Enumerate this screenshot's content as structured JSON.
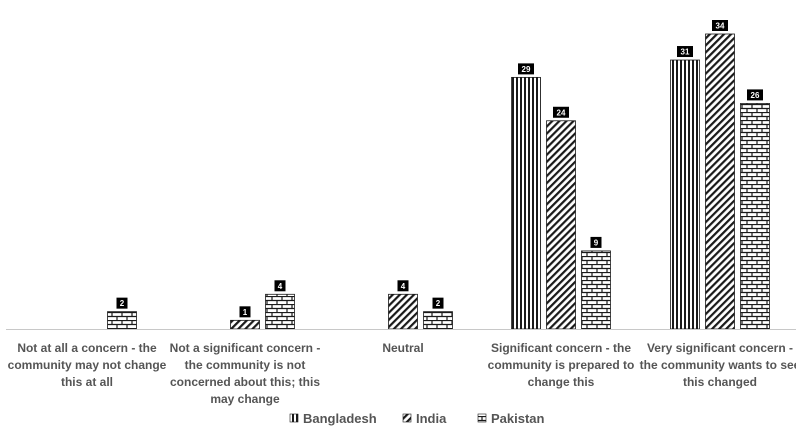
{
  "chart_data": {
    "type": "bar",
    "categories": [
      [
        "Not at all a concern - the",
        "community may not change",
        "this at all"
      ],
      [
        "Not a significant concern -",
        "the community is not",
        "concerned about this; this",
        "may change"
      ],
      [
        "Neutral"
      ],
      [
        "Significant concern - the",
        "community is prepared to",
        "change this"
      ],
      [
        "Very significant concern -",
        "the community wants to see",
        "this changed"
      ]
    ],
    "series": [
      {
        "name": "Bangladesh",
        "pattern": "vertical-lines",
        "values": [
          0,
          0,
          0,
          29,
          31
        ]
      },
      {
        "name": "India",
        "pattern": "diagonal-lines",
        "values": [
          0,
          1,
          4,
          24,
          34
        ]
      },
      {
        "name": "Pakistan",
        "pattern": "bricks",
        "values": [
          2,
          4,
          2,
          9,
          26
        ]
      }
    ],
    "ylim": [
      0,
      35
    ],
    "grid": false,
    "legend_position": "bottom",
    "colors": {
      "pattern_ink": "#1a1a1a",
      "label_box": "#000000",
      "axis": "#c8c8c8",
      "text": "#555555"
    }
  }
}
